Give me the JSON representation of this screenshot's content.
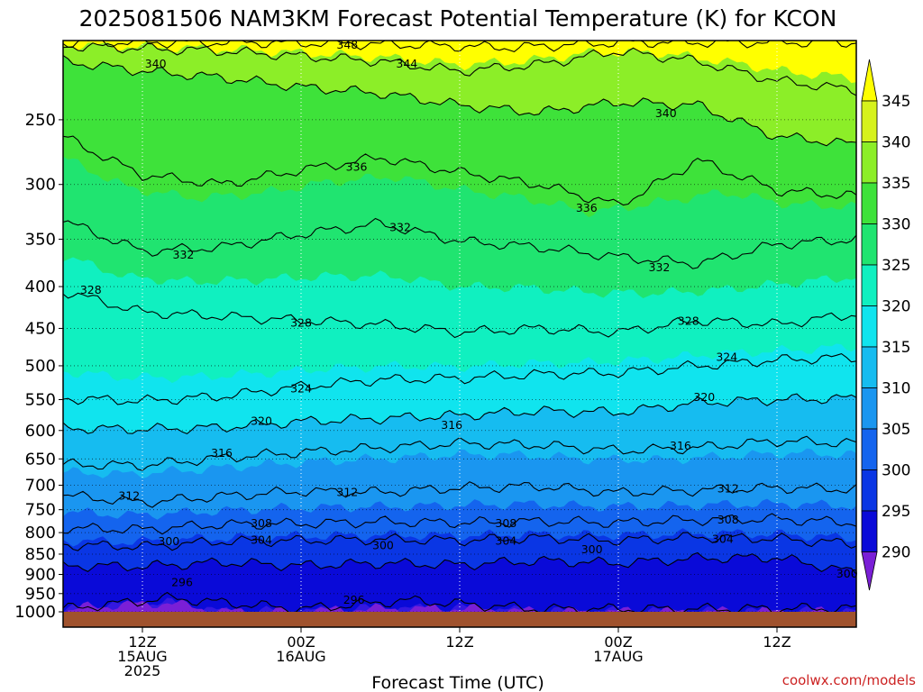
{
  "title": "2025081506 NAM3KM Forecast Potential Temperature (K) for KCON",
  "credit": "coolwx.com/models",
  "colors": {
    "credit": "#cc2222",
    "ground": "#a0522d",
    "grid": "#ffffff"
  },
  "chart_data": {
    "type": "heatmap",
    "title": "2025081506 NAM3KM Forecast Potential Temperature (K) for KCON",
    "xlabel": "Forecast Time (UTC)",
    "ylabel": "",
    "x_range_hours": [
      0,
      60
    ],
    "y_axis": {
      "scale": "log",
      "units": "hPa",
      "range": [
        200,
        1000
      ],
      "reversed": true
    },
    "y_ticks": [
      "250",
      "300",
      "350",
      "400",
      "450",
      "500",
      "550",
      "600",
      "650",
      "700",
      "750",
      "800",
      "850",
      "900",
      "950",
      "1000"
    ],
    "x_ticks": [
      {
        "hour": 6,
        "lines": [
          "12Z",
          "15AUG",
          "2025"
        ]
      },
      {
        "hour": 18,
        "lines": [
          "00Z",
          "16AUG"
        ]
      },
      {
        "hour": 30,
        "lines": [
          "12Z"
        ]
      },
      {
        "hour": 42,
        "lines": [
          "00Z",
          "17AUG"
        ]
      },
      {
        "hour": 54,
        "lines": [
          "12Z"
        ]
      }
    ],
    "colorbar": {
      "levels": [
        "290",
        "295",
        "300",
        "305",
        "310",
        "315",
        "320",
        "325",
        "330",
        "335",
        "340",
        "345"
      ],
      "colors": [
        "#7a1fd6",
        "#3418e0",
        "#0a0ad8",
        "#0a36e4",
        "#1464ee",
        "#1a96f0",
        "#16bcf0",
        "#10e4ee",
        "#10f0c0",
        "#20e470",
        "#3ee23a",
        "#8cee28",
        "#d6f21c",
        "#ffff00"
      ]
    },
    "contours": [
      {
        "value": 296,
        "samples": [
          [
            0,
            992
          ],
          [
            8,
            962
          ],
          [
            18,
            992
          ],
          [
            26,
            968
          ],
          [
            36,
            992
          ],
          [
            48,
            992
          ],
          [
            60,
            990
          ]
        ]
      },
      {
        "value": 300,
        "samples": [
          [
            0,
            878
          ],
          [
            6,
            880
          ],
          [
            12,
            870
          ],
          [
            18,
            878
          ],
          [
            24,
            872
          ],
          [
            30,
            876
          ],
          [
            36,
            866
          ],
          [
            42,
            872
          ],
          [
            48,
            860
          ],
          [
            54,
            858
          ],
          [
            60,
            896
          ]
        ]
      },
      {
        "value": 304,
        "samples": [
          [
            0,
            828
          ],
          [
            6,
            832
          ],
          [
            12,
            820
          ],
          [
            18,
            818
          ],
          [
            24,
            815
          ],
          [
            30,
            818
          ],
          [
            36,
            812
          ],
          [
            42,
            818
          ],
          [
            48,
            810
          ],
          [
            54,
            814
          ],
          [
            60,
            826
          ]
        ]
      },
      {
        "value": 308,
        "samples": [
          [
            0,
            790
          ],
          [
            6,
            793
          ],
          [
            12,
            782
          ],
          [
            18,
            780
          ],
          [
            24,
            776
          ],
          [
            30,
            778
          ],
          [
            36,
            775
          ],
          [
            42,
            778
          ],
          [
            48,
            772
          ],
          [
            54,
            770
          ],
          [
            60,
            778
          ]
        ]
      },
      {
        "value": 312,
        "samples": [
          [
            0,
            720
          ],
          [
            6,
            735
          ],
          [
            12,
            722
          ],
          [
            18,
            712
          ],
          [
            24,
            714
          ],
          [
            30,
            705
          ],
          [
            36,
            702
          ],
          [
            42,
            715
          ],
          [
            48,
            710
          ],
          [
            54,
            705
          ],
          [
            60,
            708
          ]
        ]
      },
      {
        "value": 316,
        "samples": [
          [
            0,
            660
          ],
          [
            6,
            662
          ],
          [
            12,
            648
          ],
          [
            18,
            638
          ],
          [
            24,
            630
          ],
          [
            30,
            622
          ],
          [
            36,
            625
          ],
          [
            42,
            635
          ],
          [
            48,
            630
          ],
          [
            54,
            618
          ],
          [
            60,
            622
          ]
        ]
      },
      {
        "value": 320,
        "samples": [
          [
            0,
            596
          ],
          [
            6,
            598
          ],
          [
            12,
            595
          ],
          [
            18,
            585
          ],
          [
            24,
            580
          ],
          [
            30,
            575
          ],
          [
            36,
            568
          ],
          [
            42,
            570
          ],
          [
            48,
            555
          ],
          [
            54,
            550
          ],
          [
            60,
            548
          ]
        ]
      },
      {
        "value": 324,
        "samples": [
          [
            0,
            548
          ],
          [
            6,
            552
          ],
          [
            12,
            545
          ],
          [
            18,
            530
          ],
          [
            24,
            520
          ],
          [
            30,
            518
          ],
          [
            36,
            512
          ],
          [
            42,
            510
          ],
          [
            48,
            500
          ],
          [
            54,
            492
          ],
          [
            60,
            488
          ]
        ]
      },
      {
        "value": 328,
        "samples": [
          [
            0,
            405
          ],
          [
            6,
            430
          ],
          [
            12,
            435
          ],
          [
            18,
            440
          ],
          [
            24,
            445
          ],
          [
            30,
            455
          ],
          [
            36,
            450
          ],
          [
            42,
            455
          ],
          [
            48,
            440
          ],
          [
            54,
            445
          ],
          [
            60,
            432
          ]
        ]
      },
      {
        "value": 332,
        "samples": [
          [
            0,
            332
          ],
          [
            6,
            362
          ],
          [
            12,
            358
          ],
          [
            18,
            345
          ],
          [
            24,
            335
          ],
          [
            30,
            352
          ],
          [
            36,
            358
          ],
          [
            42,
            368
          ],
          [
            48,
            375
          ],
          [
            54,
            355
          ],
          [
            60,
            350
          ]
        ]
      },
      {
        "value": 336,
        "samples": [
          [
            0,
            262
          ],
          [
            6,
            292
          ],
          [
            12,
            300
          ],
          [
            18,
            288
          ],
          [
            24,
            278
          ],
          [
            30,
            290
          ],
          [
            36,
            300
          ],
          [
            42,
            318
          ],
          [
            48,
            280
          ],
          [
            54,
            305
          ],
          [
            60,
            310
          ]
        ]
      },
      {
        "value": 340,
        "samples": [
          [
            0,
            212
          ],
          [
            6,
            218
          ],
          [
            12,
            222
          ],
          [
            18,
            228
          ],
          [
            24,
            232
          ],
          [
            30,
            240
          ],
          [
            36,
            245
          ],
          [
            42,
            238
          ],
          [
            48,
            240
          ],
          [
            54,
            262
          ],
          [
            60,
            268
          ]
        ]
      },
      {
        "value": 344,
        "samples": [
          [
            0,
            203
          ],
          [
            12,
            206
          ],
          [
            24,
            212
          ],
          [
            30,
            218
          ],
          [
            36,
            214
          ],
          [
            42,
            206
          ],
          [
            48,
            212
          ],
          [
            54,
            224
          ],
          [
            60,
            230
          ]
        ]
      },
      {
        "value": 348,
        "samples": [
          [
            14,
            201
          ],
          [
            24,
            202
          ],
          [
            34,
            204
          ],
          [
            42,
            201
          ]
        ]
      }
    ],
    "contour_labels": [
      {
        "text": "340",
        "x": 7,
        "p": 213
      },
      {
        "text": "348",
        "x": 21.5,
        "p": 202
      },
      {
        "text": "344",
        "x": 26,
        "p": 213
      },
      {
        "text": "340",
        "x": 45.6,
        "p": 245
      },
      {
        "text": "336",
        "x": 22.2,
        "p": 285
      },
      {
        "text": "336",
        "x": 39.6,
        "p": 320
      },
      {
        "text": "332",
        "x": 25.5,
        "p": 338
      },
      {
        "text": "332",
        "x": 9.1,
        "p": 365
      },
      {
        "text": "332",
        "x": 45.1,
        "p": 378
      },
      {
        "text": "328",
        "x": 2.1,
        "p": 403
      },
      {
        "text": "328",
        "x": 18,
        "p": 442
      },
      {
        "text": "328",
        "x": 47.3,
        "p": 440
      },
      {
        "text": "324",
        "x": 18,
        "p": 532
      },
      {
        "text": "324",
        "x": 50.2,
        "p": 487
      },
      {
        "text": "320",
        "x": 15,
        "p": 583
      },
      {
        "text": "320",
        "x": 48.5,
        "p": 545
      },
      {
        "text": "316",
        "x": 12,
        "p": 638
      },
      {
        "text": "316",
        "x": 29.4,
        "p": 590
      },
      {
        "text": "316",
        "x": 46.7,
        "p": 625
      },
      {
        "text": "312",
        "x": 5,
        "p": 720
      },
      {
        "text": "312",
        "x": 21.5,
        "p": 713
      },
      {
        "text": "312",
        "x": 50.3,
        "p": 705
      },
      {
        "text": "308",
        "x": 15,
        "p": 778
      },
      {
        "text": "308",
        "x": 33.5,
        "p": 778
      },
      {
        "text": "308",
        "x": 50.3,
        "p": 770
      },
      {
        "text": "304",
        "x": 15,
        "p": 815
      },
      {
        "text": "304",
        "x": 33.5,
        "p": 817
      },
      {
        "text": "304",
        "x": 49.9,
        "p": 813
      },
      {
        "text": "300",
        "x": 8,
        "p": 818
      },
      {
        "text": "300",
        "x": 24.2,
        "p": 828
      },
      {
        "text": "300",
        "x": 40,
        "p": 837
      },
      {
        "text": "300",
        "x": 59.3,
        "p": 897
      },
      {
        "text": "296",
        "x": 9,
        "p": 918
      },
      {
        "text": "296",
        "x": 22,
        "p": 965
      }
    ]
  }
}
